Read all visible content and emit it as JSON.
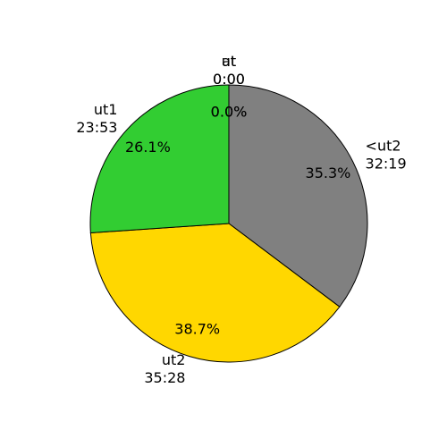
{
  "chart_data": {
    "type": "pie",
    "slices": [
      {
        "name": "<ut2",
        "duration": "32:19",
        "value": 35.3,
        "value_label": "35.3%",
        "color": "#808080"
      },
      {
        "name": "ut2",
        "duration": "35:28",
        "value": 38.7,
        "value_label": "38.7%",
        "color": "#ffd700"
      },
      {
        "name": "ut1",
        "duration": "23:53",
        "value": 26.1,
        "value_label": "26.1%",
        "color": "#32cd32"
      },
      {
        "name": "ut",
        "duration": "0:00",
        "value": 0.0,
        "value_label": "0.0%"
      },
      {
        "name": "at",
        "duration": "0:00",
        "value": 0.0,
        "value_label": "0.0%"
      }
    ]
  }
}
